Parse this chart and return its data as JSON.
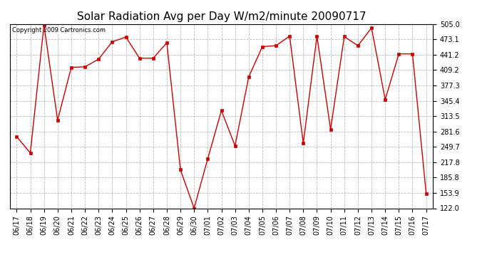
{
  "title": "Solar Radiation Avg per Day W/m2/minute 20090717",
  "copyright": "Copyright 2009 Cartronics.com",
  "labels": [
    "06/17",
    "06/18",
    "06/19",
    "06/20",
    "06/21",
    "06/22",
    "06/23",
    "06/24",
    "06/25",
    "06/26",
    "06/27",
    "06/28",
    "06/29",
    "06/30",
    "07/01",
    "07/02",
    "07/03",
    "07/04",
    "07/05",
    "07/06",
    "07/07",
    "07/08",
    "07/09",
    "07/10",
    "07/11",
    "07/12",
    "07/13",
    "07/14",
    "07/15",
    "07/16",
    "07/17"
  ],
  "values": [
    271,
    237,
    503,
    305,
    415,
    416,
    432,
    468,
    478,
    434,
    434,
    466,
    202,
    122,
    225,
    325,
    252,
    395,
    458,
    460,
    480,
    257,
    480,
    286,
    479,
    460,
    497,
    348,
    443,
    443,
    153
  ],
  "line_color": "#cc0000",
  "marker_color": "#cc0000",
  "bg_color": "#ffffff",
  "grid_color": "#bbbbbb",
  "ytick_labels": [
    "122.0",
    "153.9",
    "185.8",
    "217.8",
    "249.7",
    "281.6",
    "313.5",
    "345.4",
    "377.3",
    "409.2",
    "441.2",
    "473.1",
    "505.0"
  ],
  "ytick_values": [
    122.0,
    153.9,
    185.8,
    217.8,
    249.7,
    281.6,
    313.5,
    345.4,
    377.3,
    409.2,
    441.2,
    473.1,
    505.0
  ],
  "ylim": [
    122.0,
    505.0
  ],
  "title_fontsize": 11,
  "tick_fontsize": 7,
  "copyright_fontsize": 6
}
